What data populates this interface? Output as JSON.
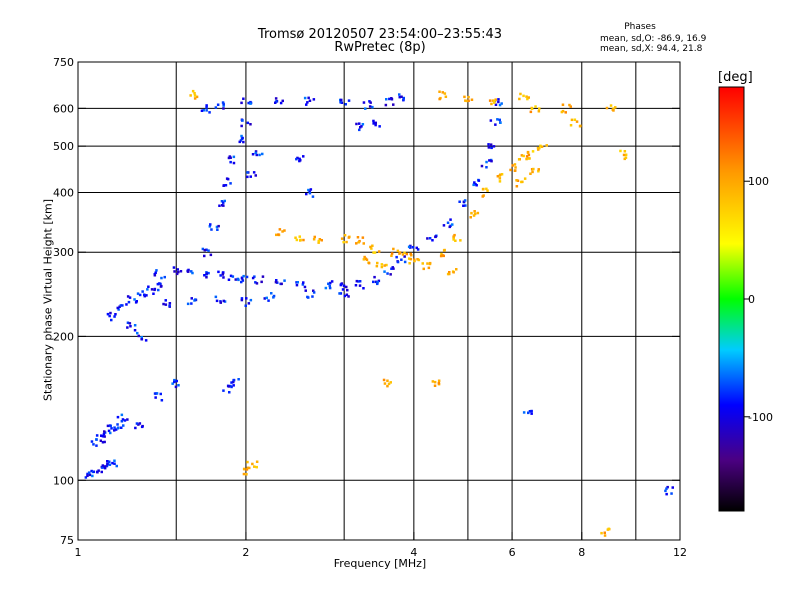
{
  "header": {
    "title": "Tromsø 20120507 23:54:00–23:55:43",
    "subtitle": "RwPretec (8p)"
  },
  "stats": {
    "heading": "Phases",
    "line1": "mean, sd,O: -86.9, 16.9",
    "line2": "mean, sd,X:  94.4, 21.8"
  },
  "colorbar": {
    "label": "[deg]",
    "range": [
      -180,
      180
    ],
    "ticks": [
      100,
      0,
      -100
    ]
  },
  "chart_data": {
    "type": "scatter",
    "xlabel": "Frequency [MHz]",
    "ylabel": "Stationary phase Virtual Height [km]",
    "xscale": "log",
    "yscale": "log",
    "xlim": [
      1,
      12
    ],
    "ylim": [
      75,
      750
    ],
    "xticks": [
      1,
      2,
      4,
      6,
      8,
      12
    ],
    "xtick_labels": [
      "1",
      "2",
      "4",
      "6",
      "8",
      "12"
    ],
    "xgrid": [
      1.5,
      2,
      3,
      4,
      5,
      6,
      8,
      10
    ],
    "yticks": [
      75,
      100,
      200,
      300,
      400,
      500,
      600,
      750
    ],
    "ytick_labels": [
      "75",
      "100",
      "200",
      "300",
      "400",
      "500",
      "600",
      "750"
    ],
    "ygrid": [
      100,
      200,
      300,
      400,
      500,
      600
    ],
    "grid": true,
    "series": [
      {
        "mode": "O",
        "phase_mean": -86.9,
        "points": [
          [
            1.05,
            103
          ],
          [
            1.08,
            104
          ],
          [
            1.1,
            106
          ],
          [
            1.13,
            108
          ],
          [
            1.15,
            109
          ],
          [
            1.08,
            120
          ],
          [
            1.1,
            122
          ],
          [
            1.13,
            125
          ],
          [
            1.15,
            128
          ],
          [
            1.18,
            131
          ],
          [
            1.2,
            135
          ],
          [
            1.28,
            130
          ],
          [
            1.15,
            220
          ],
          [
            1.2,
            230
          ],
          [
            1.25,
            240
          ],
          [
            1.3,
            245
          ],
          [
            1.35,
            250
          ],
          [
            1.4,
            255
          ],
          [
            1.4,
            270
          ],
          [
            1.5,
            275
          ],
          [
            1.6,
            272
          ],
          [
            1.7,
            270
          ],
          [
            1.8,
            268
          ],
          [
            1.9,
            266
          ],
          [
            2.0,
            265
          ],
          [
            2.1,
            262
          ],
          [
            2.3,
            260
          ],
          [
            2.5,
            258
          ],
          [
            2.8,
            256
          ],
          [
            3.0,
            255
          ],
          [
            3.2,
            257
          ],
          [
            3.4,
            262
          ],
          [
            3.6,
            275
          ],
          [
            3.8,
            290
          ],
          [
            4.0,
            305
          ],
          [
            4.3,
            320
          ],
          [
            4.6,
            345
          ],
          [
            4.9,
            380
          ],
          [
            5.2,
            420
          ],
          [
            5.4,
            460
          ],
          [
            5.5,
            500
          ],
          [
            5.6,
            560
          ],
          [
            5.7,
            620
          ],
          [
            1.45,
            235
          ],
          [
            1.6,
            238
          ],
          [
            1.8,
            240
          ],
          [
            2.0,
            236
          ],
          [
            2.2,
            242
          ],
          [
            2.6,
            245
          ],
          [
            3.0,
            247
          ],
          [
            1.7,
            300
          ],
          [
            1.75,
            340
          ],
          [
            1.8,
            380
          ],
          [
            1.85,
            420
          ],
          [
            1.9,
            470
          ],
          [
            1.95,
            520
          ],
          [
            2.0,
            560
          ],
          [
            1.7,
            600
          ],
          [
            1.8,
            610
          ],
          [
            2.0,
            620
          ],
          [
            2.3,
            625
          ],
          [
            2.6,
            620
          ],
          [
            3.0,
            615
          ],
          [
            3.3,
            610
          ],
          [
            3.6,
            620
          ],
          [
            3.8,
            630
          ],
          [
            2.05,
            440
          ],
          [
            2.1,
            480
          ],
          [
            2.5,
            470
          ],
          [
            2.6,
            400
          ],
          [
            3.2,
            550
          ],
          [
            3.4,
            560
          ],
          [
            1.5,
            160
          ],
          [
            1.4,
            150
          ],
          [
            1.85,
            155
          ],
          [
            1.9,
            160
          ],
          [
            1.25,
            210
          ],
          [
            1.3,
            200
          ],
          [
            6.4,
            140
          ],
          [
            11.5,
            95
          ]
        ]
      },
      {
        "mode": "X",
        "phase_mean": 94.4,
        "points": [
          [
            2.3,
            330
          ],
          [
            2.5,
            320
          ],
          [
            2.7,
            318
          ],
          [
            3.0,
            320
          ],
          [
            3.2,
            318
          ],
          [
            3.4,
            305
          ],
          [
            3.7,
            300
          ],
          [
            3.9,
            295
          ],
          [
            4.2,
            280
          ],
          [
            4.5,
            300
          ],
          [
            4.8,
            320
          ],
          [
            5.1,
            360
          ],
          [
            5.4,
            400
          ],
          [
            5.7,
            430
          ],
          [
            6.0,
            450
          ],
          [
            6.3,
            470
          ],
          [
            6.5,
            480
          ],
          [
            6.8,
            500
          ],
          [
            6.2,
            420
          ],
          [
            6.6,
            440
          ],
          [
            1.6,
            640
          ],
          [
            4.5,
            640
          ],
          [
            5.0,
            630
          ],
          [
            5.5,
            620
          ],
          [
            6.3,
            640
          ],
          [
            6.6,
            600
          ],
          [
            7.5,
            600
          ],
          [
            7.8,
            560
          ],
          [
            9.0,
            600
          ],
          [
            9.5,
            480
          ],
          [
            3.3,
            290
          ],
          [
            3.5,
            285
          ],
          [
            2.0,
            105
          ],
          [
            2.05,
            108
          ],
          [
            3.6,
            160
          ],
          [
            4.4,
            160
          ],
          [
            8.8,
            78
          ],
          [
            4.0,
            290
          ],
          [
            4.7,
            275
          ]
        ]
      }
    ]
  }
}
